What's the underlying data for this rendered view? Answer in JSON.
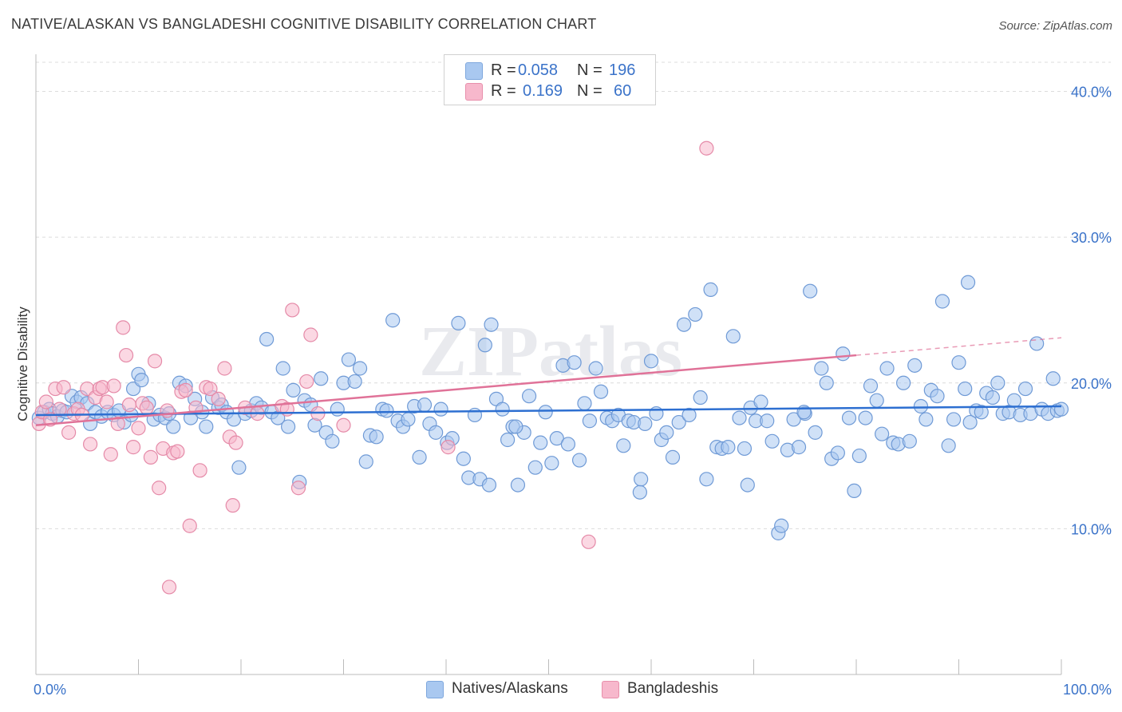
{
  "title": "NATIVE/ALASKAN VS BANGLADESHI COGNITIVE DISABILITY CORRELATION CHART",
  "source": "Source: ZipAtlas.com",
  "watermark": "ZIPatlas",
  "legend": {
    "rows": [
      {
        "r_label": "R =",
        "r_value": "0.058",
        "n_label": "N =",
        "n_value": "196",
        "color": "#a9c8f0",
        "border": "#7ea7dd"
      },
      {
        "r_label": "R =",
        "r_value": "0.169",
        "n_label": "N =",
        "n_value": "60",
        "color": "#f7b8cc",
        "border": "#e88fab"
      }
    ]
  },
  "bottom_legend": [
    {
      "label": "Natives/Alaskans",
      "color": "#a9c8f0",
      "border": "#7ea7dd"
    },
    {
      "label": "Bangladeshis",
      "color": "#f7b8cc",
      "border": "#e88fab"
    }
  ],
  "chart_data": {
    "type": "scatter",
    "title": "NATIVE/ALASKAN VS BANGLADESHI COGNITIVE DISABILITY CORRELATION CHART",
    "xlabel": "",
    "ylabel": "Cognitive Disability",
    "xlim": [
      0,
      100
    ],
    "ylim": [
      0,
      42
    ],
    "x_tick_labels": [
      "0.0%",
      "100.0%"
    ],
    "y_ticks": [
      10,
      20,
      30,
      40
    ],
    "y_tick_labels": [
      "10.0%",
      "20.0%",
      "30.0%",
      "40.0%"
    ],
    "grid": true,
    "legend_position": "top-center",
    "series": [
      {
        "name": "Natives/Alaskans",
        "color": "#a9c8f0",
        "stroke": "#6f9ad6",
        "trend": {
          "x": [
            0,
            100
          ],
          "y": [
            17.8,
            18.4
          ],
          "color": "#2d6fd1"
        },
        "points": [
          [
            0.3,
            17.6
          ],
          [
            0.8,
            18.0
          ],
          [
            1.3,
            18.2
          ],
          [
            1.6,
            17.9
          ],
          [
            2.1,
            17.7
          ],
          [
            2.6,
            18.1
          ],
          [
            3.0,
            18.0
          ],
          [
            3.5,
            19.1
          ],
          [
            4.0,
            18.7
          ],
          [
            4.4,
            19.0
          ],
          [
            5.0,
            18.6
          ],
          [
            5.3,
            17.2
          ],
          [
            5.8,
            18.0
          ],
          [
            6.4,
            17.7
          ],
          [
            7.0,
            18.0
          ],
          [
            7.6,
            17.8
          ],
          [
            8.1,
            18.1
          ],
          [
            8.6,
            17.3
          ],
          [
            9.3,
            17.8
          ],
          [
            9.5,
            19.6
          ],
          [
            10.0,
            20.6
          ],
          [
            10.3,
            20.2
          ],
          [
            11.0,
            18.6
          ],
          [
            11.5,
            17.5
          ],
          [
            12.1,
            17.8
          ],
          [
            12.6,
            17.6
          ],
          [
            13.0,
            17.9
          ],
          [
            13.4,
            17.0
          ],
          [
            14.0,
            20.0
          ],
          [
            14.6,
            19.8
          ],
          [
            15.1,
            17.6
          ],
          [
            15.5,
            18.9
          ],
          [
            16.2,
            18.0
          ],
          [
            16.6,
            17.0
          ],
          [
            17.2,
            19.0
          ],
          [
            17.8,
            18.3
          ],
          [
            18.1,
            18.5
          ],
          [
            18.6,
            18.0
          ],
          [
            19.3,
            17.5
          ],
          [
            19.8,
            14.2
          ],
          [
            20.4,
            17.9
          ],
          [
            21.0,
            18.1
          ],
          [
            21.5,
            18.6
          ],
          [
            22.0,
            18.3
          ],
          [
            22.5,
            23.0
          ],
          [
            23.0,
            18.0
          ],
          [
            23.6,
            17.6
          ],
          [
            24.1,
            21.0
          ],
          [
            24.6,
            17.0
          ],
          [
            25.1,
            19.5
          ],
          [
            25.7,
            13.2
          ],
          [
            26.2,
            18.8
          ],
          [
            26.8,
            18.5
          ],
          [
            27.2,
            17.1
          ],
          [
            27.8,
            20.3
          ],
          [
            28.3,
            16.6
          ],
          [
            28.9,
            16.0
          ],
          [
            29.4,
            18.2
          ],
          [
            30.0,
            20.0
          ],
          [
            30.5,
            21.6
          ],
          [
            31.1,
            20.1
          ],
          [
            31.6,
            21.0
          ],
          [
            32.2,
            14.6
          ],
          [
            32.6,
            16.4
          ],
          [
            33.2,
            16.3
          ],
          [
            33.8,
            18.2
          ],
          [
            34.2,
            18.1
          ],
          [
            34.8,
            24.3
          ],
          [
            35.3,
            17.4
          ],
          [
            35.8,
            17.0
          ],
          [
            36.3,
            17.5
          ],
          [
            36.9,
            18.4
          ],
          [
            37.4,
            14.9
          ],
          [
            37.9,
            18.5
          ],
          [
            38.4,
            17.2
          ],
          [
            39.0,
            16.6
          ],
          [
            39.5,
            18.2
          ],
          [
            40.1,
            15.9
          ],
          [
            40.6,
            16.2
          ],
          [
            41.2,
            24.1
          ],
          [
            41.7,
            14.8
          ],
          [
            42.2,
            13.5
          ],
          [
            42.8,
            17.8
          ],
          [
            43.3,
            13.4
          ],
          [
            43.8,
            22.6
          ],
          [
            44.4,
            24.0
          ],
          [
            44.9,
            18.9
          ],
          [
            45.5,
            18.2
          ],
          [
            46.0,
            16.1
          ],
          [
            46.5,
            17.0
          ],
          [
            47.0,
            13.0
          ],
          [
            47.6,
            16.6
          ],
          [
            48.1,
            19.1
          ],
          [
            48.7,
            14.2
          ],
          [
            49.2,
            15.9
          ],
          [
            49.7,
            18.0
          ],
          [
            50.3,
            14.5
          ],
          [
            50.8,
            16.2
          ],
          [
            51.4,
            21.2
          ],
          [
            51.9,
            15.8
          ],
          [
            52.5,
            21.4
          ],
          [
            53.0,
            14.7
          ],
          [
            53.5,
            18.6
          ],
          [
            54.0,
            17.4
          ],
          [
            54.6,
            21.0
          ],
          [
            55.1,
            19.4
          ],
          [
            55.7,
            17.6
          ],
          [
            56.2,
            17.4
          ],
          [
            56.8,
            17.8
          ],
          [
            57.3,
            15.7
          ],
          [
            57.8,
            17.4
          ],
          [
            58.3,
            17.3
          ],
          [
            58.9,
            12.5
          ],
          [
            59.4,
            17.2
          ],
          [
            60.0,
            21.5
          ],
          [
            60.5,
            17.9
          ],
          [
            61.0,
            16.1
          ],
          [
            61.5,
            16.6
          ],
          [
            62.1,
            14.9
          ],
          [
            62.7,
            17.3
          ],
          [
            63.2,
            24.0
          ],
          [
            63.7,
            17.8
          ],
          [
            64.3,
            24.7
          ],
          [
            64.8,
            19.0
          ],
          [
            65.4,
            13.4
          ],
          [
            65.8,
            26.4
          ],
          [
            66.4,
            15.6
          ],
          [
            66.9,
            15.5
          ],
          [
            67.5,
            15.6
          ],
          [
            68.0,
            23.2
          ],
          [
            68.6,
            17.6
          ],
          [
            69.1,
            15.5
          ],
          [
            69.7,
            18.3
          ],
          [
            70.2,
            17.4
          ],
          [
            70.7,
            18.7
          ],
          [
            71.3,
            17.4
          ],
          [
            71.8,
            16.0
          ],
          [
            72.4,
            9.7
          ],
          [
            72.7,
            10.2
          ],
          [
            73.3,
            15.4
          ],
          [
            73.9,
            17.5
          ],
          [
            74.4,
            15.6
          ],
          [
            75.0,
            17.9
          ],
          [
            75.5,
            26.3
          ],
          [
            76.0,
            16.6
          ],
          [
            76.6,
            21.0
          ],
          [
            77.1,
            20.0
          ],
          [
            77.6,
            14.8
          ],
          [
            78.2,
            15.2
          ],
          [
            78.7,
            22.0
          ],
          [
            79.3,
            17.6
          ],
          [
            79.8,
            12.6
          ],
          [
            80.3,
            15.0
          ],
          [
            80.9,
            17.6
          ],
          [
            81.4,
            19.8
          ],
          [
            82.0,
            18.8
          ],
          [
            82.5,
            16.5
          ],
          [
            83.0,
            21.0
          ],
          [
            83.6,
            15.9
          ],
          [
            84.1,
            15.8
          ],
          [
            84.6,
            20.0
          ],
          [
            85.2,
            16.0
          ],
          [
            85.7,
            21.2
          ],
          [
            86.3,
            18.4
          ],
          [
            86.8,
            17.5
          ],
          [
            87.3,
            19.5
          ],
          [
            87.9,
            19.1
          ],
          [
            88.4,
            25.6
          ],
          [
            89.0,
            15.7
          ],
          [
            89.5,
            17.5
          ],
          [
            90.0,
            21.4
          ],
          [
            90.6,
            19.6
          ],
          [
            91.1,
            17.3
          ],
          [
            91.7,
            18.1
          ],
          [
            92.2,
            18.0
          ],
          [
            92.7,
            19.3
          ],
          [
            93.3,
            19.0
          ],
          [
            93.8,
            20.0
          ],
          [
            94.3,
            17.9
          ],
          [
            94.9,
            18.0
          ],
          [
            95.4,
            18.8
          ],
          [
            96.0,
            17.8
          ],
          [
            96.5,
            19.6
          ],
          [
            97.0,
            17.9
          ],
          [
            97.6,
            22.7
          ],
          [
            98.1,
            18.2
          ],
          [
            98.7,
            17.9
          ],
          [
            99.2,
            20.3
          ],
          [
            99.6,
            18.1
          ],
          [
            100.0,
            18.2
          ],
          [
            90.9,
            26.9
          ],
          [
            74.9,
            18.0
          ],
          [
            59.0,
            13.4
          ],
          [
            44.2,
            13.0
          ],
          [
            46.8,
            17.0
          ],
          [
            69.4,
            13.0
          ]
        ]
      },
      {
        "name": "Bangladeshis",
        "color": "#f7b8cc",
        "stroke": "#e58aa8",
        "trend": {
          "x": [
            0,
            80
          ],
          "y": [
            17.1,
            21.9
          ],
          "color": "#e07298",
          "dashed_to": [
            100,
            23.1
          ]
        },
        "points": [
          [
            0.3,
            17.2
          ],
          [
            0.6,
            18.0
          ],
          [
            1.0,
            18.7
          ],
          [
            1.4,
            17.5
          ],
          [
            1.9,
            19.6
          ],
          [
            2.3,
            18.2
          ],
          [
            2.7,
            19.7
          ],
          [
            3.2,
            16.6
          ],
          [
            3.7,
            17.9
          ],
          [
            4.1,
            18.2
          ],
          [
            4.5,
            17.8
          ],
          [
            5.0,
            19.6
          ],
          [
            5.3,
            15.8
          ],
          [
            5.8,
            19.0
          ],
          [
            6.2,
            19.6
          ],
          [
            6.5,
            19.7
          ],
          [
            6.9,
            18.7
          ],
          [
            7.3,
            15.1
          ],
          [
            7.6,
            19.8
          ],
          [
            8.0,
            17.2
          ],
          [
            8.5,
            23.8
          ],
          [
            8.8,
            21.9
          ],
          [
            9.1,
            18.5
          ],
          [
            9.5,
            15.6
          ],
          [
            10.0,
            16.9
          ],
          [
            10.4,
            18.6
          ],
          [
            10.8,
            18.3
          ],
          [
            11.2,
            14.9
          ],
          [
            11.6,
            21.5
          ],
          [
            12.0,
            12.8
          ],
          [
            12.4,
            15.5
          ],
          [
            12.8,
            18.1
          ],
          [
            13.0,
            6.0
          ],
          [
            13.4,
            15.2
          ],
          [
            13.8,
            15.3
          ],
          [
            14.2,
            19.4
          ],
          [
            14.6,
            19.5
          ],
          [
            15.0,
            10.2
          ],
          [
            15.6,
            18.3
          ],
          [
            16.0,
            14.0
          ],
          [
            16.6,
            19.7
          ],
          [
            17.0,
            19.6
          ],
          [
            17.8,
            18.9
          ],
          [
            18.4,
            21.0
          ],
          [
            18.9,
            16.3
          ],
          [
            19.2,
            11.6
          ],
          [
            19.5,
            15.9
          ],
          [
            20.4,
            18.3
          ],
          [
            21.6,
            17.9
          ],
          [
            24.0,
            18.4
          ],
          [
            24.5,
            18.2
          ],
          [
            25.0,
            25.0
          ],
          [
            25.6,
            12.8
          ],
          [
            26.4,
            20.1
          ],
          [
            26.8,
            23.3
          ],
          [
            27.5,
            17.9
          ],
          [
            30.0,
            17.1
          ],
          [
            40.2,
            15.6
          ],
          [
            53.9,
            9.1
          ],
          [
            65.4,
            36.1
          ]
        ]
      }
    ]
  }
}
